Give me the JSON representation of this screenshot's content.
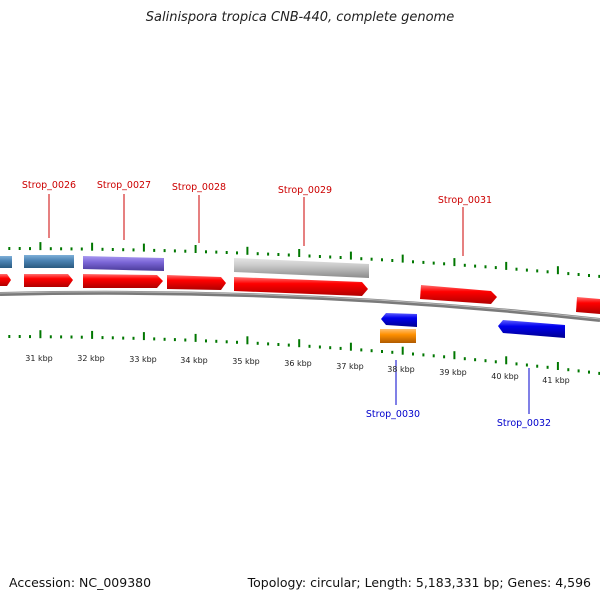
{
  "title": "Salinispora tropica CNB-440, complete genome",
  "footer": {
    "accession": "Accession: NC_009380",
    "summary": "Topology: circular; Length: 5,183,331 bp; Genes: 4,596"
  },
  "colors": {
    "cds": "#ff0000",
    "ruler": "#007700",
    "backbone": "#888888",
    "forward_label": "#cc0000",
    "reverse_label": "#0000cc",
    "feature_purple": "#7d68d8",
    "feature_steelblue": "#4d85b5",
    "feature_gray": "#c8c8c8",
    "feature_orange": "#ff9000",
    "reverse_cds": "#0000ee"
  },
  "kbp_labels": [
    "31 kbp",
    "32 kbp",
    "33 kbp",
    "34 kbp",
    "35 kbp",
    "36 kbp",
    "37 kbp",
    "38 kbp",
    "39 kbp",
    "40 kbp",
    "41 kbp"
  ],
  "gene_labels": {
    "forward": [
      "Strop_0026",
      "Strop_0027",
      "Strop_0028",
      "Strop_0029",
      "Strop_0031"
    ],
    "reverse": [
      "Strop_0030",
      "Strop_0032"
    ]
  }
}
